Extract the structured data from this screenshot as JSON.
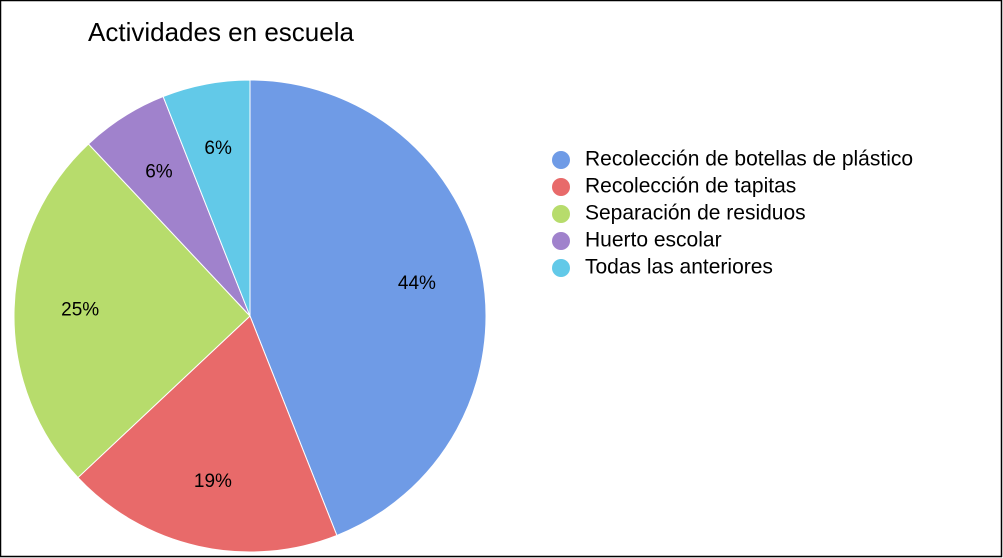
{
  "chart_data": {
    "type": "pie",
    "title": "Actividades en escuela",
    "categories": [
      "Recolección de botellas de plástico",
      "Recolección de tapitas",
      "Separación de residuos",
      "Huerto escolar",
      "Todas las anteriores"
    ],
    "values": [
      44,
      19,
      25,
      6,
      6
    ],
    "value_labels": [
      "44%",
      "19%",
      "25%",
      "6%",
      "6%"
    ],
    "colors": [
      "#6f9be6",
      "#e86a6a",
      "#b7dc6c",
      "#a082cc",
      "#62c9e8"
    ],
    "legend": "right"
  }
}
